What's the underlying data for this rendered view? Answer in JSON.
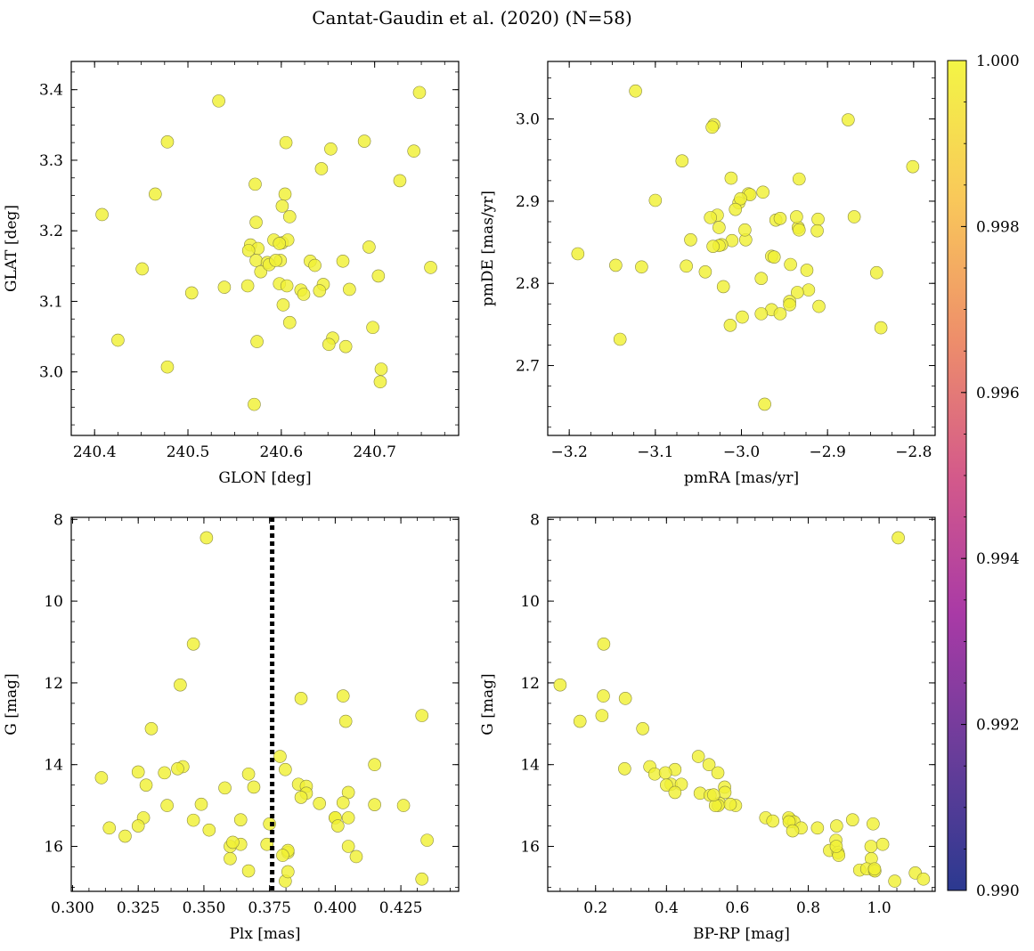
{
  "title": "Cantat-Gaudin et al. (2020) (N=58)",
  "marker_color": "#f0f035",
  "colorbar": {
    "min": 0.99,
    "max": 1.0,
    "ticks": [
      0.99,
      0.992,
      0.994,
      0.996,
      0.998,
      1.0
    ],
    "tick_labels": [
      "0.990",
      "0.992",
      "0.994",
      "0.996",
      "0.998",
      "1.000"
    ],
    "colormap": "plasma",
    "stops": [
      "#2b3990",
      "#6a3d9a",
      "#a93aa6",
      "#d45a8a",
      "#ee8f6a",
      "#f9c85a",
      "#f3f545"
    ]
  },
  "chart_data": [
    {
      "type": "scatter",
      "name": "panel-glon-glat",
      "xlabel": "GLON [deg]",
      "ylabel": "GLAT [deg]",
      "xlim": [
        240.375,
        240.79
      ],
      "ylim": [
        2.91,
        3.44
      ],
      "xticks": [
        240.4,
        240.5,
        240.6,
        240.7
      ],
      "xtick_labels": [
        "240.4",
        "240.5",
        "240.6",
        "240.7"
      ],
      "yticks": [
        3.0,
        3.1,
        3.2,
        3.3,
        3.4
      ],
      "ytick_labels": [
        "3.0",
        "3.1",
        "3.2",
        "3.3",
        "3.4"
      ],
      "invert_y": false,
      "x": [
        240.408,
        240.533,
        240.748,
        240.478,
        240.605,
        240.653,
        240.689,
        240.742,
        240.643,
        240.465,
        240.727,
        240.572,
        240.604,
        240.601,
        240.609,
        240.573,
        240.601,
        240.567,
        240.592,
        240.607,
        240.598,
        240.694,
        240.575,
        240.565,
        240.573,
        240.631,
        240.585,
        240.599,
        240.636,
        240.666,
        240.451,
        240.578,
        240.76,
        240.704,
        240.539,
        240.564,
        240.598,
        240.606,
        240.645,
        240.621,
        240.673,
        240.641,
        240.504,
        240.624,
        240.602,
        240.609,
        240.698,
        240.425,
        240.655,
        240.574,
        240.651,
        240.669,
        240.707,
        240.478,
        240.706,
        240.571,
        240.587,
        240.594
      ],
      "y": [
        3.223,
        3.384,
        3.396,
        3.326,
        3.325,
        3.316,
        3.327,
        3.313,
        3.288,
        3.252,
        3.271,
        3.266,
        3.252,
        3.235,
        3.22,
        3.212,
        3.183,
        3.18,
        3.187,
        3.187,
        3.182,
        3.177,
        3.175,
        3.172,
        3.158,
        3.157,
        3.155,
        3.158,
        3.151,
        3.157,
        3.146,
        3.142,
        3.148,
        3.136,
        3.12,
        3.122,
        3.125,
        3.122,
        3.124,
        3.116,
        3.117,
        3.115,
        3.112,
        3.11,
        3.095,
        3.07,
        3.063,
        3.045,
        3.048,
        3.043,
        3.039,
        3.036,
        3.004,
        3.007,
        2.986,
        2.954,
        3.152,
        3.158
      ]
    },
    {
      "type": "scatter",
      "name": "panel-pmra-pmde",
      "xlabel": "pmRA [mas/yr]",
      "ylabel": "pmDE [mas/yr]",
      "xlim": [
        -3.225,
        -2.775
      ],
      "ylim": [
        2.615,
        3.07
      ],
      "xticks": [
        -3.2,
        -3.1,
        -3.0,
        -2.9,
        -2.8
      ],
      "xtick_labels": [
        "−3.2",
        "−3.1",
        "−3.0",
        "−2.9",
        "−2.8"
      ],
      "yticks": [
        2.7,
        2.8,
        2.9,
        3.0
      ],
      "ytick_labels": [
        "2.7",
        "2.8",
        "2.9",
        "3.0"
      ],
      "invert_y": false,
      "x": [
        -3.123,
        -3.032,
        -3.034,
        -2.876,
        -3.069,
        -2.801,
        -3.012,
        -2.933,
        -2.992,
        -2.975,
        -2.99,
        -3.1,
        -3.003,
        -3.001,
        -2.911,
        -2.934,
        -3.028,
        -3.036,
        -2.96,
        -2.955,
        -2.869,
        -2.936,
        -2.933,
        -2.912,
        -3.026,
        -3.059,
        -3.011,
        -2.995,
        -3.023,
        -3.026,
        -2.965,
        -2.962,
        -3.19,
        -2.943,
        -3.146,
        -3.116,
        -3.064,
        -3.042,
        -2.924,
        -2.843,
        -2.977,
        -3.021,
        -2.922,
        -2.935,
        -2.944,
        -2.944,
        -2.91,
        -2.965,
        -2.977,
        -2.999,
        -2.955,
        -3.013,
        -2.838,
        -2.973,
        -3.141,
        -2.996,
        -3.033,
        -3.007
      ],
      "y": [
        3.034,
        2.993,
        2.99,
        2.999,
        2.949,
        2.942,
        2.928,
        2.927,
        2.909,
        2.911,
        2.908,
        2.901,
        2.898,
        2.903,
        2.878,
        2.868,
        2.883,
        2.88,
        2.877,
        2.879,
        2.881,
        2.881,
        2.865,
        2.864,
        2.868,
        2.853,
        2.852,
        2.853,
        2.847,
        2.846,
        2.833,
        2.832,
        2.836,
        2.823,
        2.822,
        2.82,
        2.821,
        2.814,
        2.816,
        2.813,
        2.806,
        2.796,
        2.792,
        2.789,
        2.778,
        2.774,
        2.772,
        2.768,
        2.763,
        2.759,
        2.763,
        2.749,
        2.746,
        2.653,
        2.732,
        2.865,
        2.845,
        2.89
      ]
    },
    {
      "type": "scatter",
      "name": "panel-plx-g",
      "xlabel": "Plx [mas]",
      "ylabel": "G [mag]",
      "xlim": [
        0.2995,
        0.447
      ],
      "ylim": [
        17.1,
        7.95
      ],
      "xticks": [
        0.3,
        0.325,
        0.35,
        0.375,
        0.4,
        0.425
      ],
      "xtick_labels": [
        "0.300",
        "0.325",
        "0.350",
        "0.375",
        "0.400",
        "0.425"
      ],
      "yticks": [
        8,
        10,
        12,
        14,
        16
      ],
      "ytick_labels": [
        "8",
        "10",
        "12",
        "14",
        "16"
      ],
      "invert_y": true,
      "vline": 0.376,
      "x": [
        0.351,
        0.346,
        0.341,
        0.403,
        0.387,
        0.433,
        0.404,
        0.33,
        0.379,
        0.415,
        0.342,
        0.381,
        0.34,
        0.335,
        0.325,
        0.367,
        0.386,
        0.328,
        0.389,
        0.369,
        0.358,
        0.389,
        0.405,
        0.387,
        0.394,
        0.336,
        0.349,
        0.403,
        0.426,
        0.415,
        0.364,
        0.311,
        0.327,
        0.346,
        0.364,
        0.4,
        0.405,
        0.382,
        0.314,
        0.352,
        0.4,
        0.401,
        0.325,
        0.32,
        0.375,
        0.36,
        0.435,
        0.36,
        0.374,
        0.382,
        0.405,
        0.408,
        0.381,
        0.361,
        0.367,
        0.38,
        0.382,
        0.433
      ],
      "y": [
        8.45,
        11.05,
        12.05,
        12.32,
        12.38,
        12.8,
        12.94,
        13.12,
        13.8,
        14.0,
        14.05,
        14.12,
        14.1,
        14.2,
        14.18,
        14.23,
        14.48,
        14.5,
        14.53,
        14.55,
        14.57,
        14.7,
        14.68,
        14.8,
        14.95,
        15.0,
        14.97,
        14.93,
        15.0,
        14.98,
        15.35,
        14.32,
        15.3,
        15.36,
        15.95,
        15.3,
        15.3,
        16.15,
        15.55,
        15.6,
        15.3,
        15.5,
        15.5,
        15.75,
        15.45,
        16.0,
        15.85,
        16.3,
        15.95,
        16.1,
        16.0,
        16.25,
        16.85,
        15.9,
        16.6,
        16.22,
        16.62,
        16.8
      ]
    },
    {
      "type": "scatter",
      "name": "panel-bprp-g",
      "xlabel": "BP-RP [mag]",
      "ylabel": "G [mag]",
      "xlim": [
        0.065,
        1.158
      ],
      "ylim": [
        17.1,
        7.95
      ],
      "xticks": [
        0.2,
        0.4,
        0.6,
        0.8,
        1.0
      ],
      "xtick_labels": [
        "0.2",
        "0.4",
        "0.6",
        "0.8",
        "1.0"
      ],
      "yticks": [
        8,
        10,
        12,
        14,
        16
      ],
      "ytick_labels": [
        "8",
        "10",
        "12",
        "14",
        "16"
      ],
      "invert_y": true,
      "x": [
        1.054,
        0.223,
        0.1,
        0.222,
        0.284,
        0.218,
        0.156,
        0.333,
        0.49,
        0.52,
        0.353,
        0.424,
        0.282,
        0.367,
        0.397,
        0.545,
        0.413,
        0.4,
        0.564,
        0.442,
        0.424,
        0.565,
        0.495,
        0.523,
        0.55,
        0.546,
        0.538,
        0.595,
        0.58,
        0.75,
        0.925,
        0.68,
        0.745,
        0.7,
        0.88,
        0.76,
        0.826,
        0.78,
        0.983,
        0.977,
        0.878,
        0.86,
        0.984,
        0.884,
        0.945,
        0.886,
        1.01,
        0.978,
        1.044,
        1.102,
        0.965,
        0.988,
        1.125,
        0.987,
        0.533,
        0.746,
        0.756,
        0.879
      ],
      "y": [
        8.45,
        11.05,
        12.05,
        12.32,
        12.38,
        12.8,
        12.94,
        13.12,
        13.8,
        14.0,
        14.05,
        14.12,
        14.1,
        14.23,
        14.2,
        14.2,
        14.48,
        14.5,
        14.55,
        14.48,
        14.68,
        14.68,
        14.7,
        14.75,
        14.95,
        15.0,
        15.0,
        15.0,
        14.97,
        15.35,
        15.35,
        15.3,
        15.3,
        15.38,
        15.5,
        15.4,
        15.55,
        15.55,
        15.45,
        16.0,
        15.85,
        16.1,
        16.58,
        16.15,
        16.58,
        16.22,
        15.95,
        16.3,
        16.85,
        16.65,
        16.55,
        16.6,
        16.8,
        16.55,
        14.74,
        15.4,
        15.62,
        16.0
      ]
    }
  ]
}
